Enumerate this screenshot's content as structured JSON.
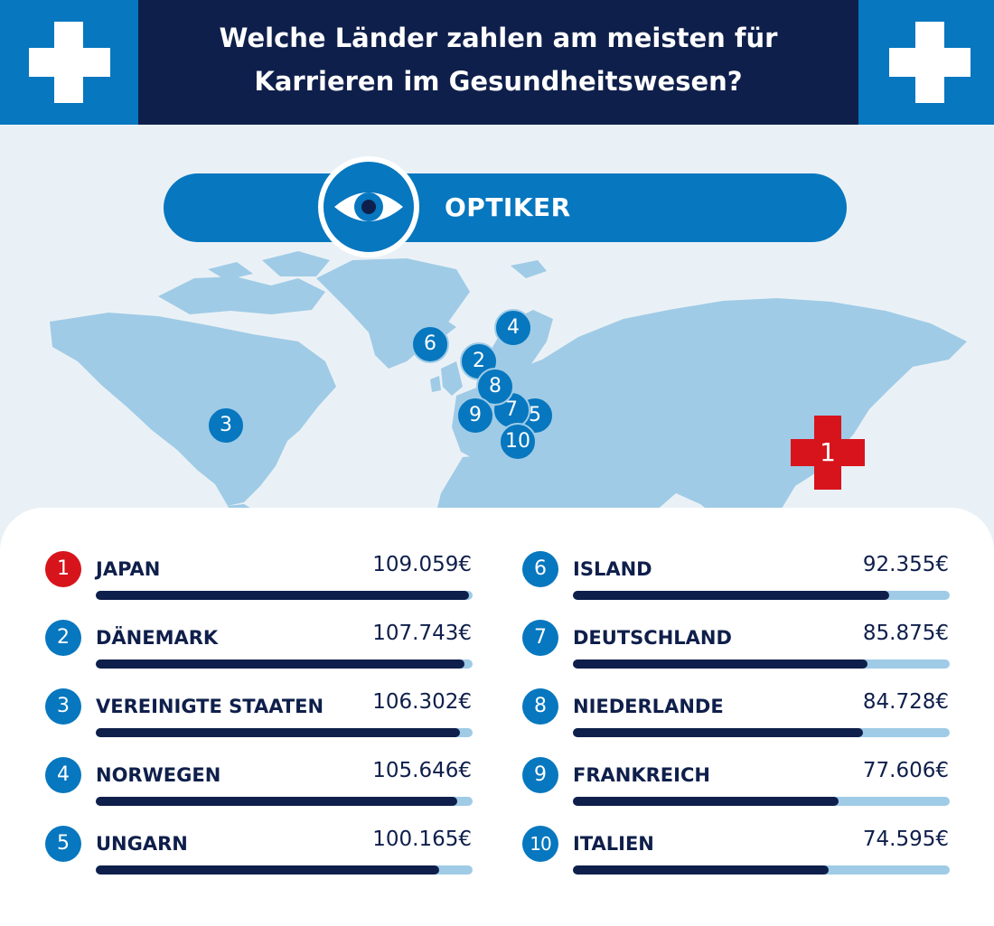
{
  "header": {
    "title_line1": "Welche Länder zahlen am meisten für",
    "title_line2": "Karrieren im Gesundheitswesen?"
  },
  "category": {
    "label": "OPTIKER",
    "icon": "eye-icon"
  },
  "colors": {
    "navy": "#0f1f4b",
    "blue": "#0777bf",
    "light_blue": "#9fcbe6",
    "red": "#d7141c"
  },
  "map_markers": [
    {
      "rank": "1",
      "country": "Japan"
    },
    {
      "rank": "2",
      "country": "Dänemark"
    },
    {
      "rank": "3",
      "country": "Vereinigte Staaten"
    },
    {
      "rank": "4",
      "country": "Norwegen"
    },
    {
      "rank": "5",
      "country": "Ungarn"
    },
    {
      "rank": "6",
      "country": "Island"
    },
    {
      "rank": "7",
      "country": "Deutschland"
    },
    {
      "rank": "8",
      "country": "Niederlande"
    },
    {
      "rank": "9",
      "country": "Frankreich"
    },
    {
      "rank": "10",
      "country": "Italien"
    }
  ],
  "chart_data": {
    "type": "bar",
    "title": "Welche Länder zahlen am meisten für Karrieren im Gesundheitswesen?",
    "subtitle": "OPTIKER",
    "unit": "€",
    "xlim": [
      0,
      110000
    ],
    "categories": [
      "JAPAN",
      "DÄNEMARK",
      "VEREINIGTE STAATEN",
      "NORWEGEN",
      "UNGARN",
      "ISLAND",
      "DEUTSCHLAND",
      "NIEDERLANDE",
      "FRANKREICH",
      "ITALIEN"
    ],
    "values": [
      109059,
      107743,
      106302,
      105646,
      100165,
      92355,
      85875,
      84728,
      77606,
      74595
    ],
    "rows": [
      {
        "rank": "1",
        "country": "JAPAN",
        "value_label": "109.059€",
        "value": 109059
      },
      {
        "rank": "2",
        "country": "DÄNEMARK",
        "value_label": "107.743€",
        "value": 107743
      },
      {
        "rank": "3",
        "country": "VEREINIGTE STAATEN",
        "value_label": "106.302€",
        "value": 106302
      },
      {
        "rank": "4",
        "country": "NORWEGEN",
        "value_label": "105.646€",
        "value": 105646
      },
      {
        "rank": "5",
        "country": "UNGARN",
        "value_label": "100.165€",
        "value": 100165
      },
      {
        "rank": "6",
        "country": "ISLAND",
        "value_label": "92.355€",
        "value": 92355
      },
      {
        "rank": "7",
        "country": "DEUTSCHLAND",
        "value_label": "85.875€",
        "value": 85875
      },
      {
        "rank": "8",
        "country": "NIEDERLANDE",
        "value_label": "84.728€",
        "value": 84728
      },
      {
        "rank": "9",
        "country": "FRANKREICH",
        "value_label": "77.606€",
        "value": 77606
      },
      {
        "rank": "10",
        "country": "ITALIEN",
        "value_label": "74.595€",
        "value": 74595
      }
    ]
  }
}
